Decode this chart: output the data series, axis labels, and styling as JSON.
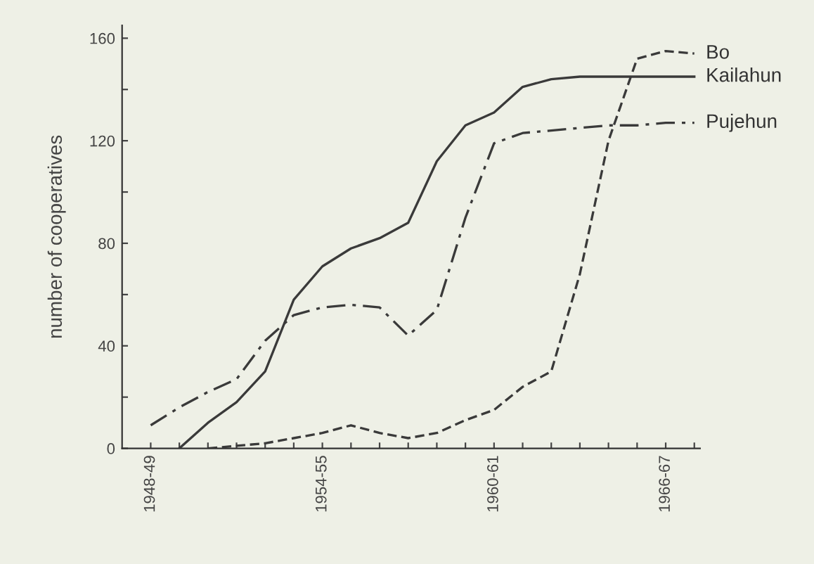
{
  "chart_data": {
    "type": "line",
    "ylabel": "number of cooperatives",
    "ylim": [
      0,
      165
    ],
    "categories": [
      "1948-49",
      null,
      null,
      null,
      null,
      null,
      "1954-55",
      null,
      null,
      null,
      null,
      null,
      "1960-61",
      null,
      null,
      null,
      null,
      null,
      "1966-67",
      null
    ],
    "yticks": [
      0,
      {
        "value": 20,
        "label": null
      },
      40,
      {
        "value": 60,
        "label": null
      },
      80,
      {
        "value": 100,
        "label": null
      },
      120,
      {
        "value": 140,
        "label": null
      },
      160
    ],
    "grid": false,
    "legend": false,
    "series": [
      {
        "name": "Bo",
        "color": "#3a3a3a",
        "line_style": "dashed",
        "values": [
          null,
          null,
          0,
          1,
          2,
          4,
          6,
          9,
          6,
          4,
          6,
          11,
          15,
          24,
          30,
          68,
          120,
          152,
          155,
          154
        ]
      },
      {
        "name": "Kailahun",
        "color": "#3a3a3a",
        "line_style": "solid",
        "values": [
          null,
          0,
          10,
          18,
          30,
          58,
          71,
          78,
          82,
          88,
          112,
          126,
          131,
          141,
          144,
          145,
          145,
          145,
          145,
          145
        ]
      },
      {
        "name": "Pujehun",
        "color": "#3a3a3a",
        "line_style": "dashdot",
        "values": [
          9,
          16,
          22,
          27,
          42,
          52,
          55,
          56,
          55,
          44,
          54,
          90,
          119,
          123,
          124,
          125,
          126,
          126,
          127,
          127
        ]
      }
    ]
  }
}
